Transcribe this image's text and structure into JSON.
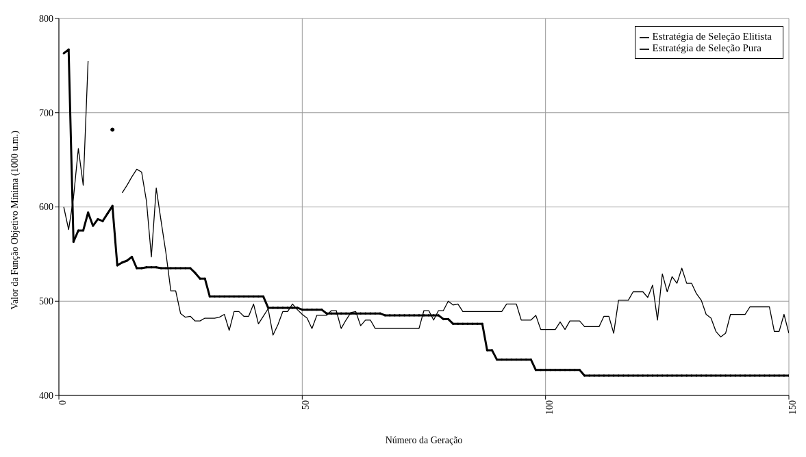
{
  "chart_data": {
    "type": "line",
    "xlabel": "Número da Geração",
    "ylabel": "Valor da Função Objetivo Mínima (1000 u.m.)",
    "xlim": [
      0,
      150
    ],
    "xticks": [
      0,
      50,
      100,
      150
    ],
    "ylim": [
      400,
      800
    ],
    "yticks": [
      400,
      500,
      600,
      700,
      800
    ],
    "grid": true,
    "legend": "top right",
    "x": [
      1,
      2,
      3,
      4,
      5,
      6,
      7,
      8,
      9,
      10,
      11,
      12,
      13,
      14,
      15,
      16,
      17,
      18,
      19,
      20,
      21,
      22,
      23,
      24,
      25,
      26,
      27,
      28,
      29,
      30,
      31,
      32,
      33,
      34,
      35,
      36,
      37,
      38,
      39,
      40,
      41,
      42,
      43,
      44,
      45,
      46,
      47,
      48,
      49,
      50,
      51,
      52,
      53,
      54,
      55,
      56,
      57,
      58,
      59,
      60,
      61,
      62,
      63,
      64,
      65,
      66,
      67,
      68,
      69,
      70,
      71,
      72,
      73,
      74,
      75,
      76,
      77,
      78,
      79,
      80,
      81,
      82,
      83,
      84,
      85,
      86,
      87,
      88,
      89,
      90,
      91,
      92,
      93,
      94,
      95,
      96,
      97,
      98,
      99,
      100,
      101,
      102,
      103,
      104,
      105,
      106,
      107,
      108,
      109,
      110,
      111,
      112,
      113,
      114,
      115,
      116,
      117,
      118,
      119,
      120,
      121,
      122,
      123,
      124,
      125,
      126,
      127,
      128,
      129,
      130,
      131,
      132,
      133,
      134,
      135,
      136,
      137,
      138,
      139,
      140,
      141,
      142,
      143,
      144,
      145,
      146,
      147,
      148,
      149,
      150
    ],
    "series": [
      {
        "name": "Estratégia de Seleção Elitista",
        "color": "#000000",
        "marker": "circle",
        "values": [
          763,
          767,
          563,
          575,
          575,
          594,
          580,
          587,
          585,
          593,
          601,
          538,
          541,
          543,
          547,
          535,
          535,
          536,
          536,
          536,
          535,
          535,
          535,
          535,
          535,
          535,
          535,
          530,
          524,
          524,
          505,
          505,
          505,
          505,
          505,
          505,
          505,
          505,
          505,
          505,
          505,
          505,
          493,
          493,
          493,
          493,
          493,
          493,
          493,
          491,
          491,
          491,
          491,
          491,
          487,
          487,
          487,
          487,
          487,
          487,
          487,
          487,
          487,
          487,
          487,
          487,
          485,
          485,
          485,
          485,
          485,
          485,
          485,
          485,
          485,
          485,
          485,
          485,
          481,
          481,
          476,
          476,
          476,
          476,
          476,
          476,
          476,
          448,
          448,
          438,
          438,
          438,
          438,
          438,
          438,
          438,
          438,
          427,
          427,
          427,
          427,
          427,
          427,
          427,
          427,
          427,
          427,
          421,
          421,
          421,
          421,
          421,
          421,
          421,
          421,
          421,
          421,
          421,
          421,
          421,
          421,
          421,
          421,
          421,
          421,
          421,
          421,
          421,
          421,
          421,
          421,
          421,
          421,
          421,
          421,
          421,
          421,
          421,
          421,
          421,
          421,
          421,
          421,
          421,
          421,
          421,
          421,
          421,
          421,
          421
        ]
      },
      {
        "name": "Estratégia de Seleção Pura",
        "color": "#000000",
        "marker": "none",
        "values": [
          600,
          576,
          610,
          662,
          623,
          755,
          null,
          null,
          null,
          null,
          682,
          null,
          615,
          623,
          632,
          640,
          637,
          606,
          547,
          620,
          585,
          551,
          511,
          511,
          487,
          483,
          484,
          479,
          479,
          482,
          482,
          482,
          483,
          486,
          469,
          489,
          489,
          484,
          484,
          497,
          476,
          484,
          492,
          464,
          475,
          489,
          489,
          497,
          491,
          486,
          482,
          471,
          485,
          485,
          485,
          490,
          490,
          471,
          480,
          488,
          489,
          474,
          480,
          480,
          471,
          471,
          471,
          471,
          471,
          471,
          471,
          471,
          471,
          471,
          490,
          490,
          480,
          490,
          490,
          500,
          496,
          497,
          489,
          489,
          489,
          489,
          489,
          489,
          489,
          489,
          489,
          497,
          497,
          497,
          480,
          480,
          480,
          485,
          470,
          470,
          470,
          470,
          478,
          470,
          479,
          479,
          479,
          473,
          473,
          473,
          473,
          484,
          484,
          466,
          501,
          501,
          501,
          510,
          510,
          510,
          504,
          517,
          480,
          529,
          510,
          526,
          519,
          535,
          519,
          519,
          508,
          501,
          486,
          482,
          468,
          462,
          466,
          486,
          486,
          486,
          486,
          494,
          494,
          494,
          494,
          494,
          468,
          468,
          486,
          466
        ]
      }
    ]
  }
}
